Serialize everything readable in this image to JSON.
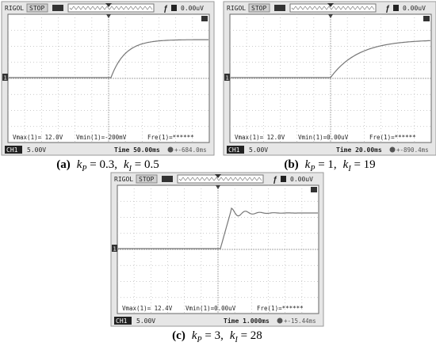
{
  "panels": [
    {
      "brand": "RIGOL",
      "status": "STOP",
      "trigger_level": "0.00uV",
      "marker": "1",
      "vmax": "Vmax(1)= 12.0V",
      "vmin": "Vmin(1)=-200mV",
      "freq": "Fre(1)=******",
      "channel": "CH1",
      "volts": "5.00V",
      "time": "Time 50.00ms",
      "offset": "+-684.0ms",
      "caption": {
        "tag": "(a)",
        "kp": "k",
        "kp_sub": "P",
        "kp_val": " = 0.3,",
        "ki": "k",
        "ki_sub": "I",
        "ki_val": " = 0.5"
      }
    },
    {
      "brand": "RIGOL",
      "status": "STOP",
      "trigger_level": "0.00uV",
      "marker": "1",
      "vmax": "Vmax(1)= 12.0V",
      "vmin": "Vmin(1)=0.00uV",
      "freq": "Fre(1)=******",
      "channel": "CH1",
      "volts": "5.00V",
      "time": "Time 20.00ms",
      "offset": "+-890.4ms",
      "caption": {
        "tag": "(b)",
        "kp": "k",
        "kp_sub": "P",
        "kp_val": " = 1,",
        "ki": "k",
        "ki_sub": "I",
        "ki_val": " = 19"
      }
    },
    {
      "brand": "RIGOL",
      "status": "STOP",
      "trigger_level": "0.00uV",
      "marker": "1",
      "vmax": "Vmax(1)= 12.4V",
      "vmin": "Vmin(1)=0.00uV",
      "freq": "Fre(1)=******",
      "channel": "CH1",
      "volts": "5.00V",
      "time": "Time 1.000ms",
      "offset": "+-15.44ms",
      "caption": {
        "tag": "(c)",
        "kp": "k",
        "kp_sub": "P",
        "kp_val": " = 3,",
        "ki": "k",
        "ki_sub": "I",
        "ki_val": " = 28"
      }
    }
  ]
}
